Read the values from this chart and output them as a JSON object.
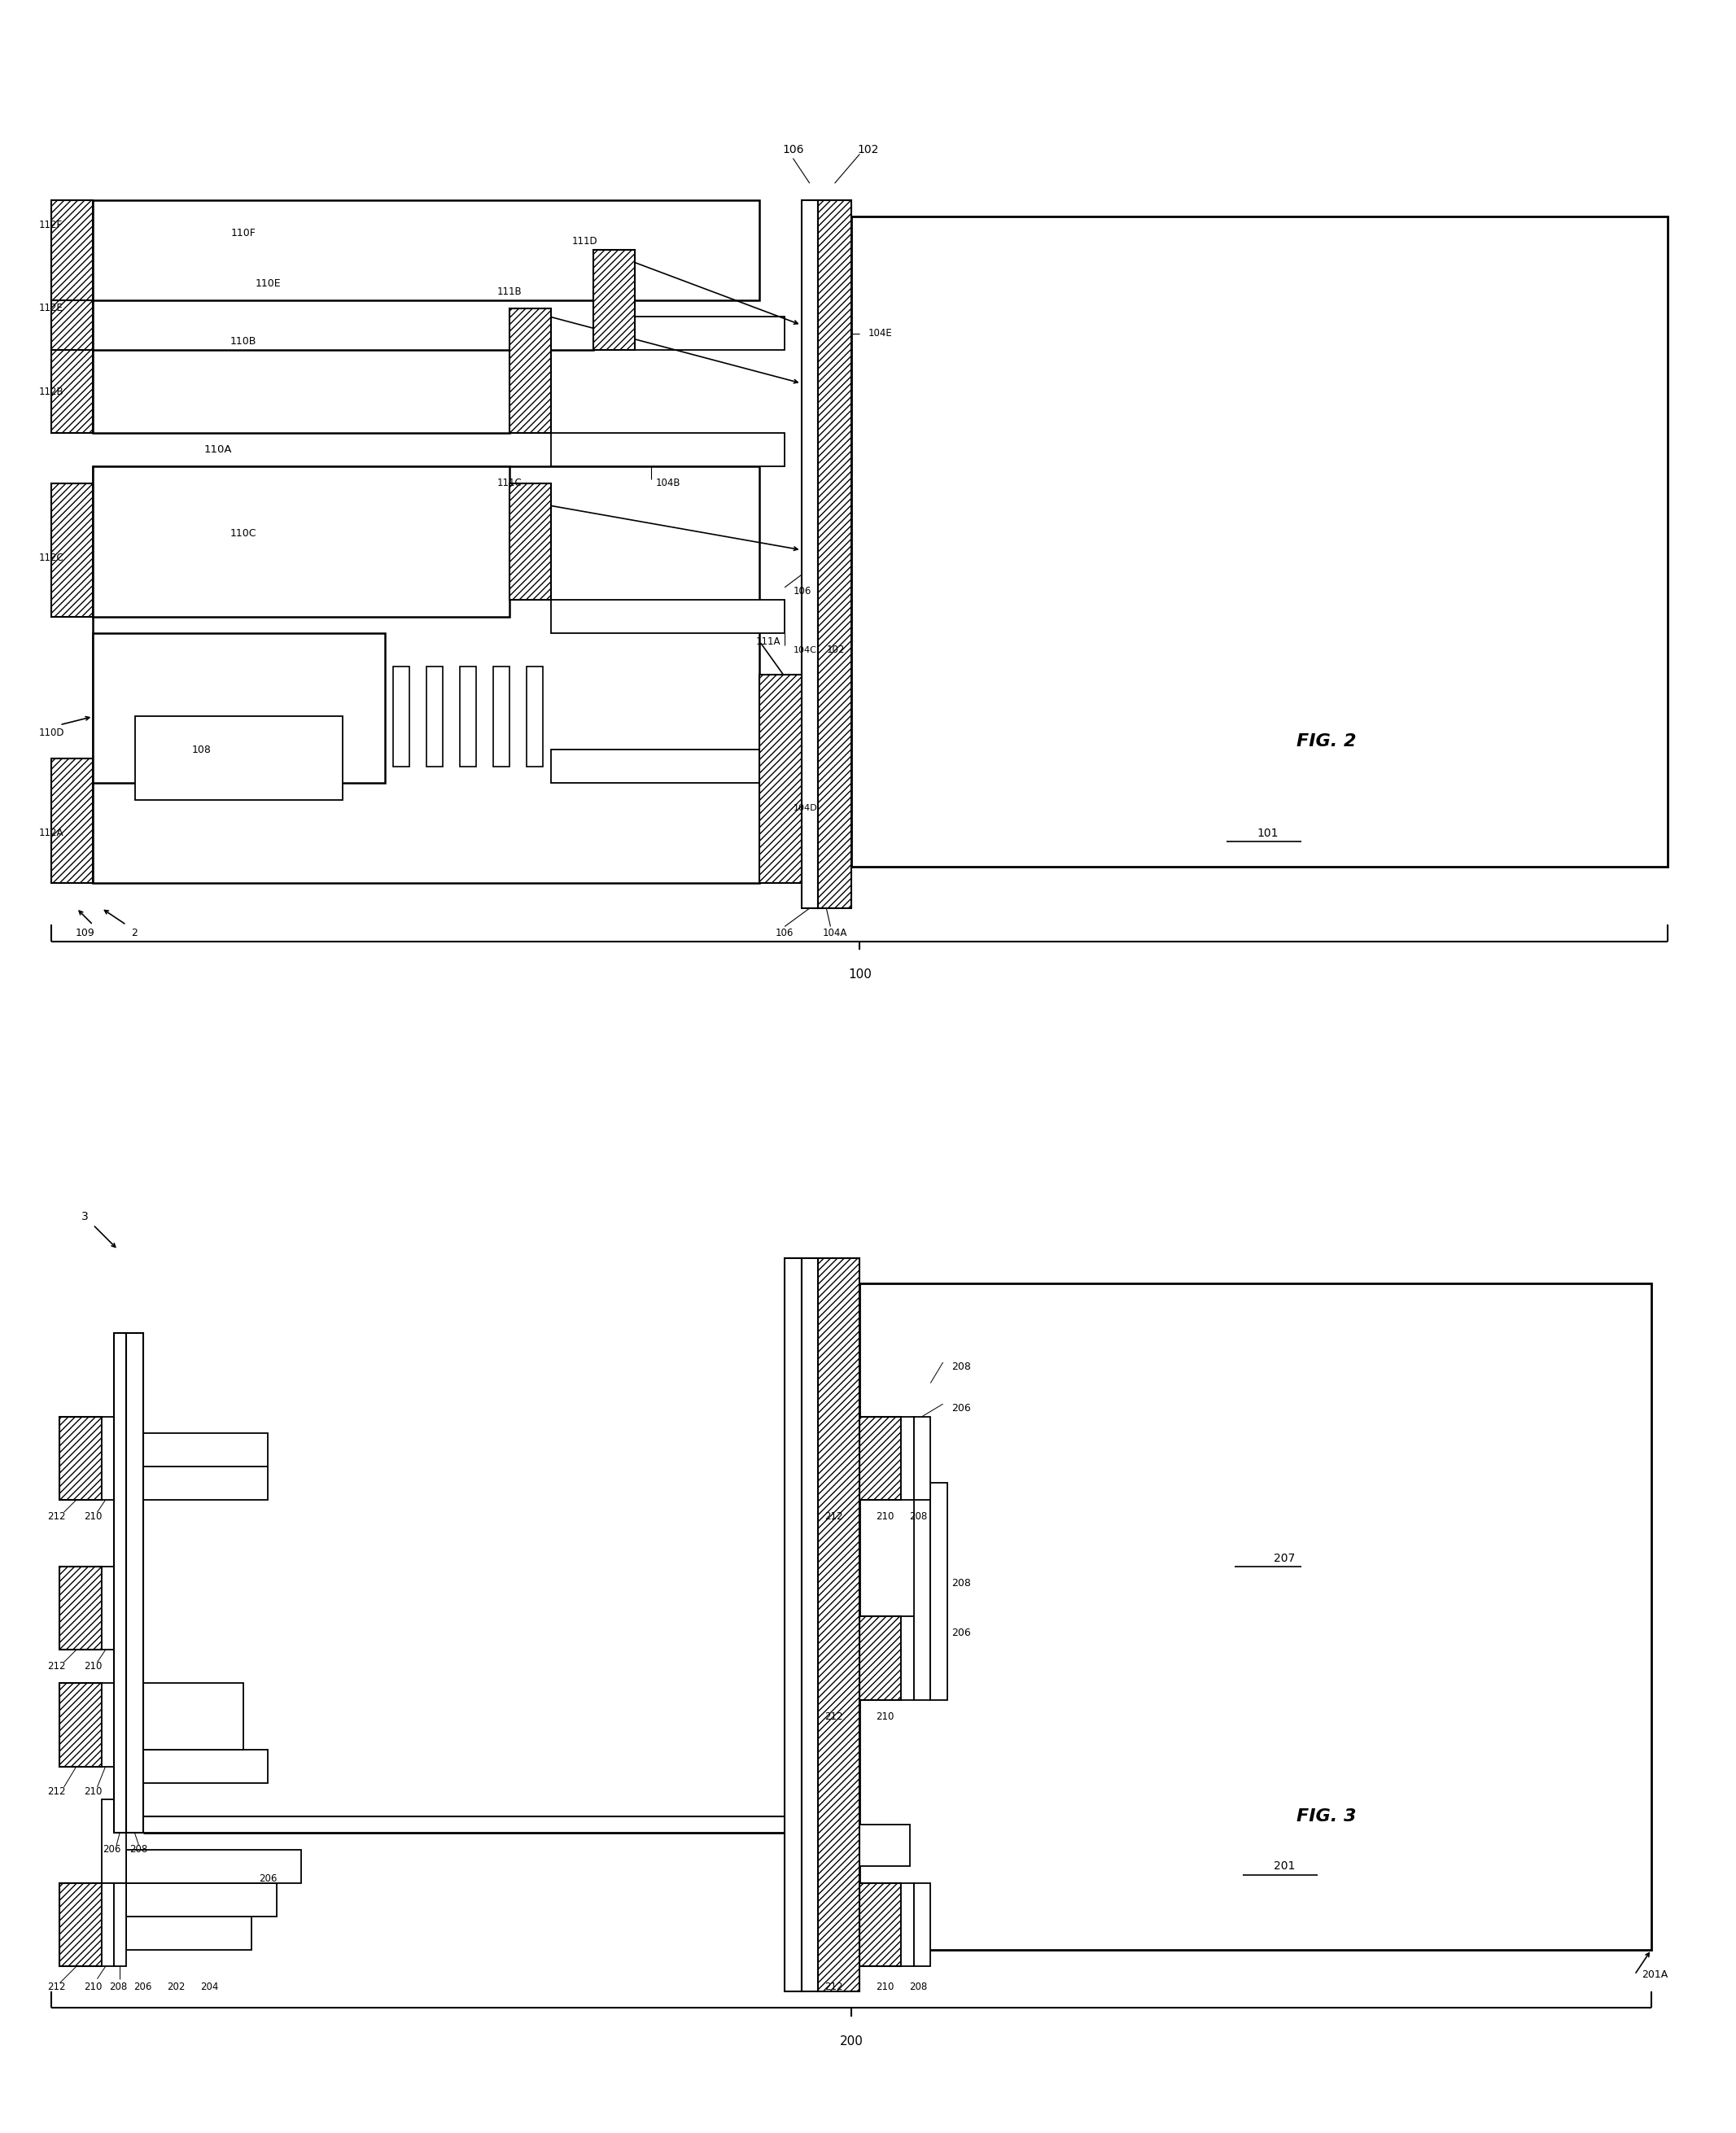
{
  "bg_color": "#ffffff",
  "line_color": "#000000",
  "fig_width": 21.33,
  "fig_height": 26.21,
  "fig2_label": "FIG. 2",
  "fig3_label": "FIG. 3",
  "label_100": "100",
  "label_200": "200"
}
